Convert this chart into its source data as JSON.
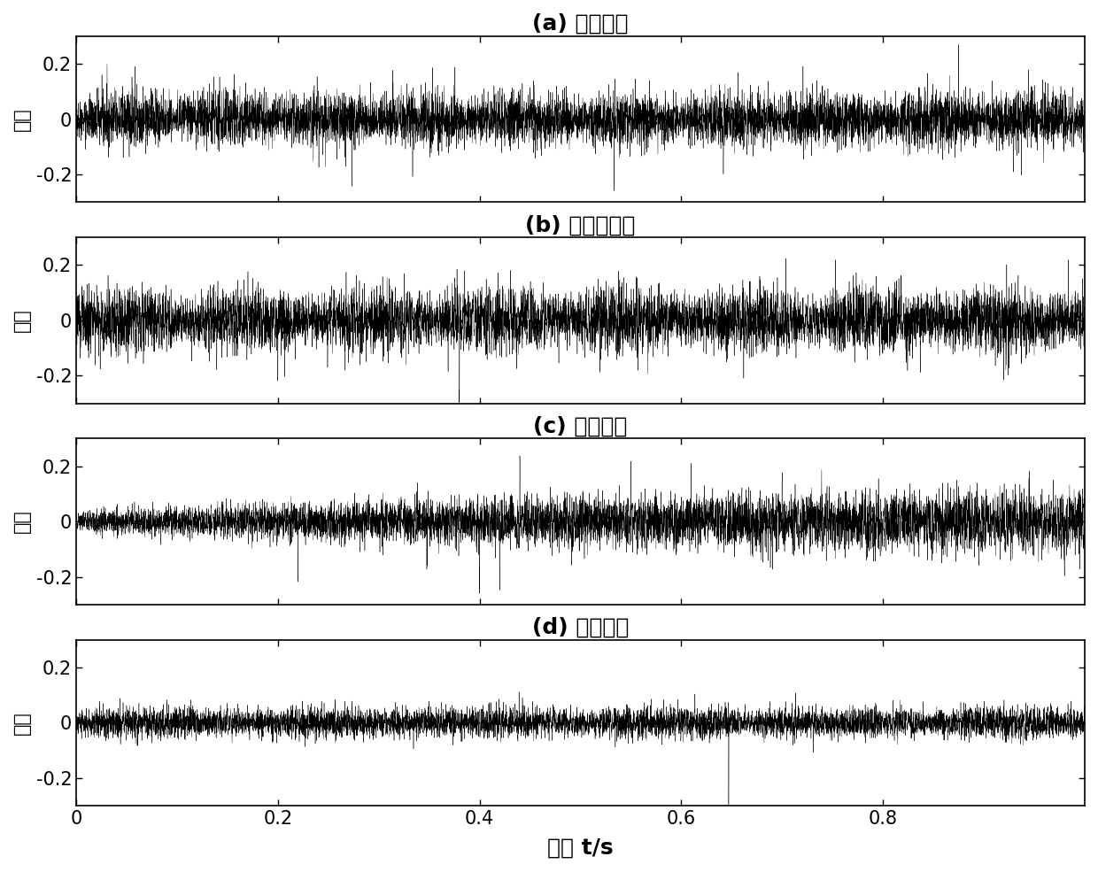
{
  "titles": [
    "(a) 正常轴承",
    "(b) 滚珠体故障",
    "(c) 内圈故障",
    "(d) 外圈故障"
  ],
  "xlabel": "时间 t/s",
  "ylabel": "幅値",
  "xlim": [
    0,
    1.0
  ],
  "ylim": [
    -0.3,
    0.3
  ],
  "yticks": [
    -0.2,
    0,
    0.2
  ],
  "xticks": [
    0,
    0.2,
    0.4,
    0.6,
    0.8
  ],
  "xticklabels": [
    "0",
    "0.2",
    "0.4",
    "0.6",
    "0.8"
  ],
  "yticklabels": [
    "-0.2",
    "0",
    "0.2"
  ],
  "n_samples": 8192,
  "duration": 1.0,
  "background_color": "#ffffff",
  "signal_color": "#000000",
  "seeds": [
    42,
    123,
    456,
    789
  ],
  "title_fontsize": 18,
  "label_fontsize": 16,
  "tick_fontsize": 15
}
